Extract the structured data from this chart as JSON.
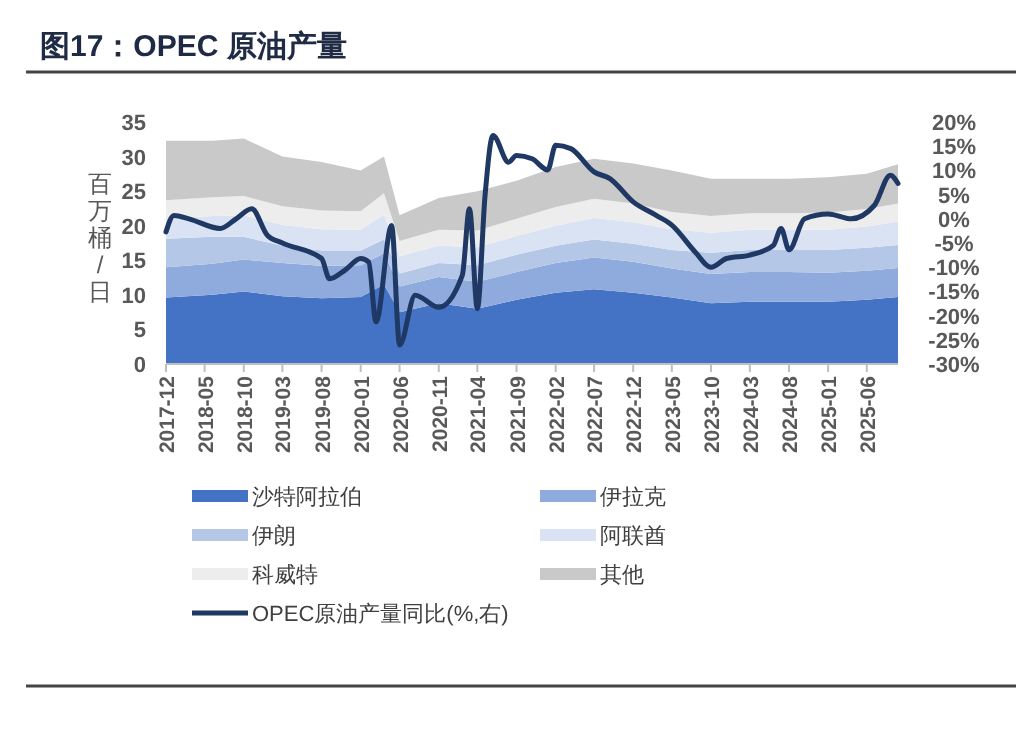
{
  "chart_data": {
    "type": "area",
    "title": "图17：OPEC 原油产量",
    "ylabel": "百万桶/日",
    "stacked": true,
    "legend": "bottom",
    "grid": false,
    "marker": "none",
    "x": [
      "2017-12",
      "2018-06",
      "2018-10",
      "2019-03",
      "2019-08",
      "2020-01",
      "2020-04",
      "2020-06",
      "2020-11",
      "2021-04",
      "2021-09",
      "2022-02",
      "2022-07",
      "2022-12",
      "2023-05",
      "2023-10",
      "2024-03",
      "2024-08",
      "2025-01",
      "2025-06",
      "2025-10"
    ],
    "xlim": [
      "2017-12",
      "2025-10"
    ],
    "xticks": [
      "2017-12",
      "2018-05",
      "2018-10",
      "2019-03",
      "2019-08",
      "2020-01",
      "2020-06",
      "2020-11",
      "2021-04",
      "2021-09",
      "2022-02",
      "2022-07",
      "2022-12",
      "2023-05",
      "2023-10",
      "2024-03",
      "2024-08",
      "2025-01",
      "2025-06"
    ],
    "ylim": [
      0,
      35
    ],
    "yticks": [
      0,
      5,
      10,
      15,
      20,
      25,
      30,
      35
    ],
    "y2lim": [
      -30,
      20
    ],
    "y2ticks": [
      {
        "value": -30,
        "label": "-30%"
      },
      {
        "value": -25,
        "label": "-25%"
      },
      {
        "value": -20,
        "label": "-20%"
      },
      {
        "value": -15,
        "label": "-15%"
      },
      {
        "value": -10,
        "label": "-10%"
      },
      {
        "value": -5,
        "label": "-5%"
      },
      {
        "value": 0,
        "label": "0%"
      },
      {
        "value": 5,
        "label": "5%"
      },
      {
        "value": 10,
        "label": "10%"
      },
      {
        "value": 15,
        "label": "15%"
      },
      {
        "value": 20,
        "label": "20%"
      }
    ],
    "series": [
      {
        "name": "沙特阿拉伯",
        "color": "#4472c4",
        "values": [
          9.6,
          10,
          10.5,
          9.8,
          9.5,
          9.7,
          11.5,
          7.5,
          8.8,
          8,
          9.3,
          10.3,
          10.8,
          10.3,
          9.6,
          8.8,
          9,
          9,
          9,
          9.3,
          9.7
        ]
      },
      {
        "name": "伊拉克",
        "color": "#8faadc",
        "values": [
          4.4,
          4.5,
          4.6,
          4.8,
          4.7,
          4.6,
          4.5,
          3.7,
          3.8,
          3.9,
          4,
          4.3,
          4.6,
          4.5,
          4.2,
          4.2,
          4.3,
          4.3,
          4.2,
          4.2,
          4.2
        ]
      },
      {
        "name": "伊朗",
        "color": "#b4c7e7",
        "values": [
          4.1,
          3.9,
          3.3,
          2.5,
          2.2,
          2.1,
          2,
          1.9,
          2,
          2.4,
          2.5,
          2.5,
          2.6,
          2.6,
          2.7,
          3.1,
          3.2,
          3.2,
          3.3,
          3.3,
          3.3
        ]
      },
      {
        "name": "阿联酋",
        "color": "#dae3f3",
        "values": [
          2.9,
          3,
          3.1,
          3,
          3.1,
          3,
          3.6,
          2.5,
          2.5,
          2.6,
          2.7,
          2.9,
          3.1,
          3.1,
          3,
          2.9,
          2.9,
          2.9,
          2.9,
          3.1,
          3.4
        ]
      },
      {
        "name": "科威特",
        "color": "#ededed",
        "values": [
          2.7,
          2.7,
          2.8,
          2.7,
          2.7,
          2.7,
          3.1,
          2.2,
          2.3,
          2.4,
          2.5,
          2.7,
          2.8,
          2.7,
          2.5,
          2.4,
          2.4,
          2.4,
          2.5,
          2.5,
          2.6
        ]
      },
      {
        "name": "其他",
        "color": "#c9c9c9",
        "values": [
          8.6,
          8.2,
          8.3,
          7.2,
          7.0,
          5.9,
          5.3,
          3.7,
          4.6,
          5.7,
          5.5,
          5.8,
          5.8,
          5.8,
          6.0,
          5.4,
          5.0,
          5.0,
          5.1,
          5.1,
          5.7
        ]
      },
      {
        "name": "OPEC原油产量同比(%,右)",
        "type": "line",
        "axis": "y2",
        "color": "#1f3864",
        "line_style": "solid",
        "x": [
          "2017-12",
          "2018-01",
          "2018-03",
          "2018-07",
          "2018-09",
          "2018-11",
          "2019-01",
          "2019-03",
          "2019-08",
          "2019-09",
          "2019-11",
          "2020-01",
          "2020-02",
          "2020-03",
          "2020-05",
          "2020-06",
          "2020-08",
          "2020-11",
          "2021-02",
          "2021-03",
          "2021-04",
          "2021-05",
          "2021-06",
          "2021-08",
          "2021-09",
          "2021-11",
          "2022-01",
          "2022-02",
          "2022-04",
          "2022-07",
          "2022-09",
          "2022-12",
          "2023-03",
          "2023-05",
          "2023-08",
          "2023-10",
          "2023-12",
          "2024-03",
          "2024-06",
          "2024-07",
          "2024-08",
          "2024-10",
          "2025-01",
          "2025-04",
          "2025-07",
          "2025-09",
          "2025-10"
        ],
        "values": [
          -2.7,
          0.7,
          0,
          -2,
          0,
          2.1,
          -3.4,
          -5,
          -8.2,
          -12.4,
          -10.6,
          -8.2,
          -8.9,
          -21.3,
          -1.4,
          -26.1,
          -15.8,
          -18.3,
          -11.7,
          2.1,
          -18.6,
          4.8,
          17.2,
          11.7,
          13.1,
          12.4,
          10.1,
          15.2,
          14.5,
          9.7,
          8.3,
          3.5,
          0.7,
          -1.3,
          -6.9,
          -10,
          -8.2,
          -7.5,
          -5.5,
          -2,
          -6.4,
          0,
          1,
          0,
          2.8,
          9,
          7.3
        ]
      }
    ]
  }
}
